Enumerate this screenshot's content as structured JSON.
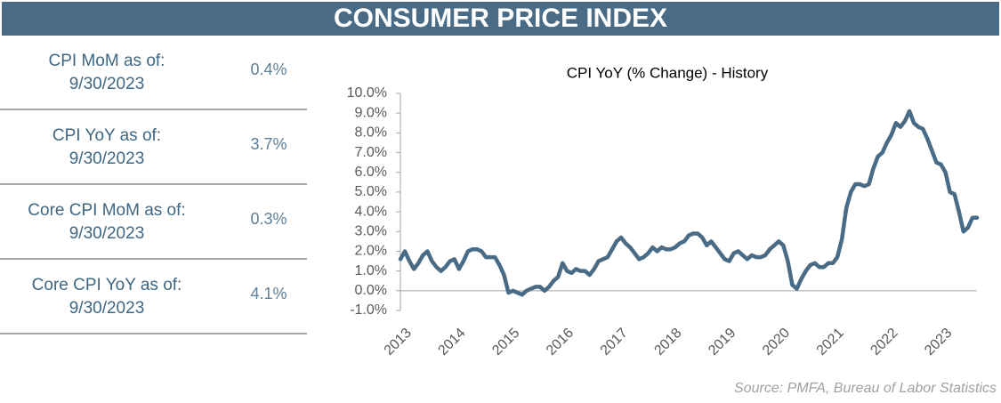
{
  "header": {
    "title": "CONSUMER PRICE INDEX"
  },
  "stats": [
    {
      "label": "CPI MoM as of:",
      "date": "9/30/2023",
      "value": "0.4%"
    },
    {
      "label": "CPI YoY as of:",
      "date": "9/30/2023",
      "value": "3.7%"
    },
    {
      "label": "Core CPI MoM as of:",
      "date": "9/30/2023",
      "value": "0.3%"
    },
    {
      "label": "Core CPI YoY as of:",
      "date": "9/30/2023",
      "value": "4.1%"
    }
  ],
  "chart_data": {
    "type": "line",
    "title": "CPI YoY (% Change) - History",
    "categories": [
      "2013",
      null,
      null,
      null,
      null,
      null,
      null,
      null,
      null,
      null,
      null,
      null,
      "2014",
      null,
      null,
      null,
      null,
      null,
      null,
      null,
      null,
      null,
      null,
      null,
      "2015",
      null,
      null,
      null,
      null,
      null,
      null,
      null,
      null,
      null,
      null,
      null,
      "2016",
      null,
      null,
      null,
      null,
      null,
      null,
      null,
      null,
      null,
      null,
      null,
      "2017",
      null,
      null,
      null,
      null,
      null,
      null,
      null,
      null,
      null,
      null,
      null,
      "2018",
      null,
      null,
      null,
      null,
      null,
      null,
      null,
      null,
      null,
      null,
      null,
      "2019",
      null,
      null,
      null,
      null,
      null,
      null,
      null,
      null,
      null,
      null,
      null,
      "2020",
      null,
      null,
      null,
      null,
      null,
      null,
      null,
      null,
      null,
      null,
      null,
      "2021",
      null,
      null,
      null,
      null,
      null,
      null,
      null,
      null,
      null,
      null,
      null,
      "2022",
      null,
      null,
      null,
      null,
      null,
      null,
      null,
      null,
      null,
      null,
      null,
      "2023",
      null,
      null,
      null,
      null,
      null,
      null,
      null,
      null
    ],
    "values": [
      1.6,
      2.0,
      1.5,
      1.1,
      1.4,
      1.8,
      2.0,
      1.5,
      1.2,
      1.0,
      1.2,
      1.5,
      1.6,
      1.1,
      1.5,
      2.0,
      2.1,
      2.1,
      2.0,
      1.7,
      1.7,
      1.7,
      1.3,
      0.8,
      -0.1,
      0.0,
      -0.1,
      -0.2,
      0.0,
      0.1,
      0.2,
      0.2,
      0.0,
      0.2,
      0.5,
      0.7,
      1.4,
      1.0,
      0.9,
      1.1,
      1.0,
      1.0,
      0.8,
      1.1,
      1.5,
      1.6,
      1.7,
      2.1,
      2.5,
      2.7,
      2.4,
      2.2,
      1.9,
      1.6,
      1.7,
      1.9,
      2.2,
      2.0,
      2.2,
      2.1,
      2.1,
      2.2,
      2.4,
      2.5,
      2.8,
      2.9,
      2.9,
      2.7,
      2.3,
      2.5,
      2.2,
      1.9,
      1.6,
      1.5,
      1.9,
      2.0,
      1.8,
      1.6,
      1.8,
      1.7,
      1.7,
      1.8,
      2.1,
      2.3,
      2.5,
      2.3,
      1.5,
      0.3,
      0.1,
      0.6,
      1.0,
      1.3,
      1.4,
      1.2,
      1.2,
      1.4,
      1.4,
      1.7,
      2.6,
      4.2,
      5.0,
      5.4,
      5.4,
      5.3,
      5.4,
      6.2,
      6.8,
      7.0,
      7.5,
      7.9,
      8.5,
      8.3,
      8.6,
      9.1,
      8.5,
      8.3,
      8.2,
      7.7,
      7.1,
      6.5,
      6.4,
      6.0,
      5.0,
      4.9,
      4.0,
      3.0,
      3.2,
      3.7,
      3.7
    ],
    "color": "#4a6b85",
    "ylim": [
      -1,
      10
    ],
    "yticks": [
      {
        "value": -1,
        "label": "-1.0%"
      },
      {
        "value": 0,
        "label": "0.0%"
      },
      {
        "value": 1,
        "label": "1.0%"
      },
      {
        "value": 2,
        "label": "2.0%"
      },
      {
        "value": 3,
        "label": "3.0%"
      },
      {
        "value": 4,
        "label": "4.0%"
      },
      {
        "value": 5,
        "label": "5.0%"
      },
      {
        "value": 6,
        "label": "6.0%"
      },
      {
        "value": 7,
        "label": "7.0%"
      },
      {
        "value": 8,
        "label": "8.0%"
      },
      {
        "value": 9,
        "label": "9.0%"
      },
      {
        "value": 10,
        "label": "10.0%"
      }
    ],
    "grid": false,
    "source": "Source:  PMFA, Bureau of Labor Statistics"
  }
}
